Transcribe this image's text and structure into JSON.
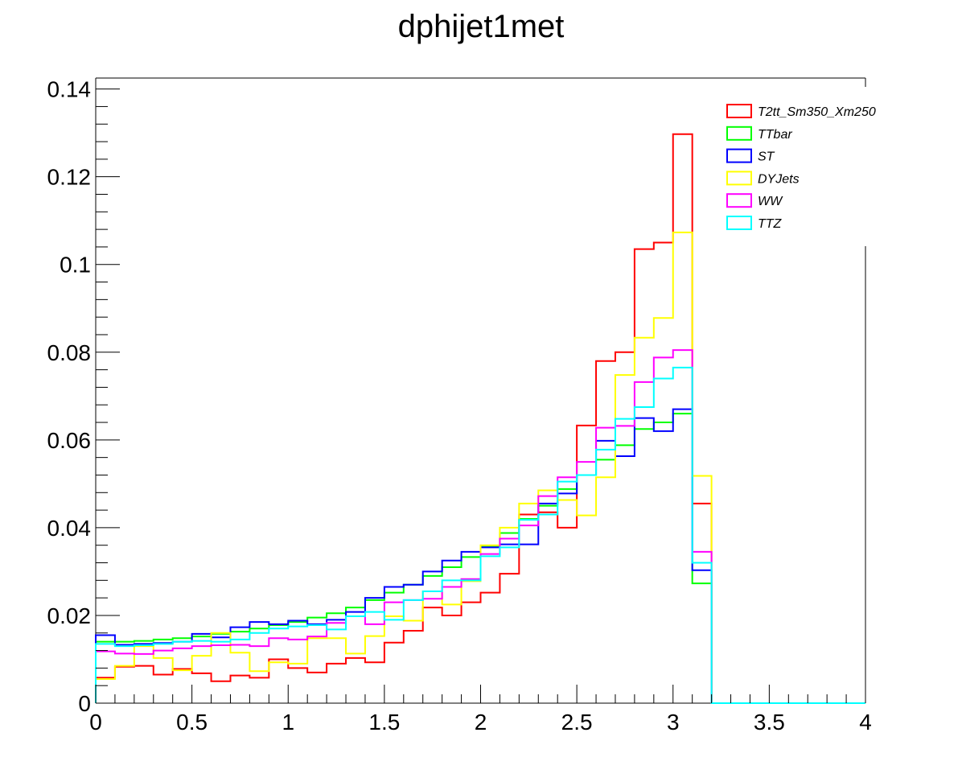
{
  "chart_data": {
    "type": "histogram",
    "title": "dphijet1met",
    "xlabel": "",
    "ylabel": "",
    "xlim": [
      0,
      4
    ],
    "ylim": [
      0,
      0.1425
    ],
    "bin_edges": [
      0,
      0.1,
      0.2,
      0.3,
      0.4,
      0.5,
      0.6,
      0.7,
      0.8,
      0.9,
      1.0,
      1.1,
      1.2,
      1.3,
      1.4,
      1.5,
      1.6,
      1.7,
      1.8,
      1.9,
      2.0,
      2.1,
      2.2,
      2.3,
      2.4,
      2.5,
      2.6,
      2.7,
      2.8,
      2.9,
      3.0,
      3.1,
      3.2,
      3.3,
      3.4,
      3.5,
      3.6,
      3.7,
      3.8,
      3.9,
      4.0
    ],
    "x_ticks": [
      0,
      0.5,
      1,
      1.5,
      2,
      2.5,
      3,
      3.5,
      4
    ],
    "x_tick_labels": [
      "0",
      "0.5",
      "1",
      "1.5",
      "2",
      "2.5",
      "3",
      "3.5",
      "4"
    ],
    "y_ticks": [
      0,
      0.02,
      0.04,
      0.06,
      0.08,
      0.1,
      0.12,
      0.14
    ],
    "y_tick_labels": [
      "0",
      "0.02",
      "0.04",
      "0.06",
      "0.08",
      "0.1",
      "0.12",
      "0.14"
    ],
    "grid": false,
    "legend_position": "top-right",
    "series": [
      {
        "name": "T2tt_Sm350_Xm250",
        "color": "#ff0000",
        "values": [
          0.0058,
          0.0083,
          0.0085,
          0.0065,
          0.0078,
          0.0068,
          0.005,
          0.0063,
          0.0058,
          0.01,
          0.008,
          0.007,
          0.009,
          0.0103,
          0.0093,
          0.0138,
          0.0165,
          0.0218,
          0.02,
          0.023,
          0.0252,
          0.0295,
          0.043,
          0.0435,
          0.04,
          0.0633,
          0.078,
          0.08,
          0.1035,
          0.105,
          0.1297,
          0.0455,
          0,
          0,
          0,
          0,
          0,
          0,
          0,
          0
        ]
      },
      {
        "name": "TTbar",
        "color": "#00ff00",
        "values": [
          0.014,
          0.014,
          0.0142,
          0.0145,
          0.0148,
          0.0152,
          0.0158,
          0.0163,
          0.017,
          0.0178,
          0.0185,
          0.0195,
          0.0205,
          0.0218,
          0.0235,
          0.0252,
          0.027,
          0.029,
          0.031,
          0.0333,
          0.0358,
          0.0388,
          0.042,
          0.045,
          0.0488,
          0.052,
          0.0555,
          0.0588,
          0.0625,
          0.064,
          0.066,
          0.0273,
          0,
          0,
          0,
          0,
          0,
          0,
          0,
          0
        ]
      },
      {
        "name": "ST",
        "color": "#0000ff",
        "values": [
          0.0155,
          0.0133,
          0.0135,
          0.0137,
          0.014,
          0.0158,
          0.015,
          0.0173,
          0.0185,
          0.018,
          0.0188,
          0.018,
          0.019,
          0.0208,
          0.024,
          0.0265,
          0.027,
          0.03,
          0.0325,
          0.0345,
          0.0355,
          0.0362,
          0.0362,
          0.0455,
          0.0478,
          0.052,
          0.0598,
          0.0563,
          0.065,
          0.062,
          0.067,
          0.0303,
          0,
          0,
          0,
          0,
          0,
          0,
          0,
          0
        ]
      },
      {
        "name": "DYJets",
        "color": "#ffff00",
        "values": [
          0.0055,
          0.0085,
          0.013,
          0.0103,
          0.0075,
          0.0108,
          0.016,
          0.0115,
          0.0073,
          0.0093,
          0.009,
          0.0148,
          0.0148,
          0.0113,
          0.0153,
          0.0198,
          0.0188,
          0.0255,
          0.0225,
          0.0278,
          0.036,
          0.04,
          0.0455,
          0.0485,
          0.0463,
          0.0428,
          0.0515,
          0.0748,
          0.0833,
          0.0878,
          0.1073,
          0.0518,
          0,
          0,
          0,
          0,
          0,
          0,
          0,
          0
        ]
      },
      {
        "name": "WW",
        "color": "#ff00ff",
        "values": [
          0.0118,
          0.0113,
          0.0112,
          0.012,
          0.0125,
          0.013,
          0.0132,
          0.0133,
          0.013,
          0.0148,
          0.0145,
          0.0152,
          0.0183,
          0.0198,
          0.018,
          0.023,
          0.0235,
          0.0238,
          0.0265,
          0.0283,
          0.034,
          0.0375,
          0.0405,
          0.0472,
          0.0515,
          0.055,
          0.0628,
          0.0632,
          0.0732,
          0.0788,
          0.0805,
          0.0345,
          0,
          0,
          0,
          0,
          0,
          0,
          0,
          0
        ]
      },
      {
        "name": "TTZ",
        "color": "#00ffff",
        "values": [
          0.0135,
          0.013,
          0.0132,
          0.0135,
          0.014,
          0.0142,
          0.014,
          0.0145,
          0.016,
          0.017,
          0.0175,
          0.0178,
          0.0168,
          0.0198,
          0.0208,
          0.019,
          0.0235,
          0.0255,
          0.028,
          0.028,
          0.0335,
          0.0355,
          0.0418,
          0.043,
          0.0505,
          0.052,
          0.0578,
          0.0648,
          0.0675,
          0.074,
          0.0765,
          0.032,
          0,
          0,
          0,
          0,
          0,
          0,
          0,
          0
        ]
      }
    ]
  }
}
